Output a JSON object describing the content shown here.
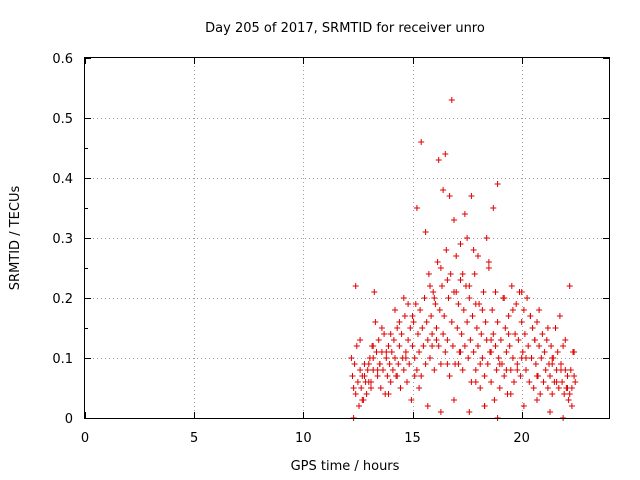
{
  "chart_data": {
    "type": "scatter",
    "title": "Day 205 of 2017, SRMTID for receiver unro",
    "xlabel": "GPS time / hours",
    "ylabel": "SRMTID / TECUs",
    "xlim": [
      0,
      24
    ],
    "ylim": [
      0,
      0.6
    ],
    "xticks": [
      0,
      5,
      10,
      15,
      20
    ],
    "xtick_labels": [
      "0",
      "5",
      "10",
      "15",
      "20"
    ],
    "yticks": [
      0,
      0.1,
      0.2,
      0.3,
      0.4,
      0.5,
      0.6
    ],
    "ytick_labels": [
      "0",
      "0.1",
      "0.2",
      "0.3",
      "0.4",
      "0.5",
      "0.6"
    ],
    "grid": true,
    "marker": "plus",
    "series": [
      {
        "name": "unro",
        "color": "#e00000",
        "x": [
          12.25,
          12.3,
          12.35,
          12.4,
          12.45,
          12.5,
          12.55,
          12.6,
          12.65,
          12.7,
          12.75,
          12.8,
          12.85,
          12.9,
          12.95,
          13.0,
          13.05,
          13.1,
          13.15,
          13.2,
          13.25,
          13.3,
          13.35,
          13.4,
          13.45,
          13.5,
          13.55,
          13.6,
          13.65,
          13.7,
          13.75,
          13.8,
          13.85,
          13.9,
          13.95,
          14.0,
          14.05,
          14.1,
          14.15,
          14.2,
          14.25,
          14.3,
          14.35,
          14.4,
          14.45,
          14.5,
          14.55,
          14.6,
          14.65,
          14.7,
          14.75,
          14.8,
          14.85,
          14.9,
          14.95,
          15.0,
          15.05,
          15.1,
          15.15,
          15.2,
          15.25,
          15.3,
          15.35,
          15.4,
          15.45,
          15.5,
          15.55,
          15.6,
          15.65,
          15.7,
          15.75,
          15.8,
          15.85,
          15.9,
          15.95,
          16.0,
          16.05,
          16.1,
          16.15,
          16.2,
          16.25,
          16.3,
          16.35,
          16.4,
          16.45,
          16.5,
          16.55,
          16.6,
          16.65,
          16.7,
          16.75,
          16.8,
          16.85,
          16.9,
          16.95,
          17.0,
          17.05,
          17.1,
          17.15,
          17.2,
          17.25,
          17.3,
          17.35,
          17.4,
          17.45,
          17.5,
          17.55,
          17.6,
          17.65,
          17.7,
          17.75,
          17.8,
          17.85,
          17.9,
          17.95,
          18.0,
          18.05,
          18.1,
          18.15,
          18.2,
          18.25,
          18.3,
          18.35,
          18.4,
          18.45,
          18.5,
          18.55,
          18.6,
          18.65,
          18.7,
          18.75,
          18.8,
          18.85,
          18.9,
          18.95,
          19.0,
          19.05,
          19.1,
          19.15,
          19.2,
          19.25,
          19.3,
          19.35,
          19.4,
          19.45,
          19.5,
          19.55,
          19.6,
          19.65,
          19.7,
          19.75,
          19.8,
          19.85,
          19.9,
          19.95,
          20.0,
          20.05,
          20.1,
          20.15,
          20.2,
          20.25,
          20.3,
          20.35,
          20.4,
          20.45,
          20.5,
          20.55,
          20.6,
          20.65,
          20.7,
          20.75,
          20.8,
          20.85,
          20.9,
          20.95,
          21.0,
          21.05,
          21.1,
          21.15,
          21.2,
          21.25,
          21.3,
          21.35,
          21.4,
          21.45,
          21.5,
          21.55,
          21.6,
          21.65,
          21.7,
          21.75,
          21.8,
          21.85,
          21.9,
          21.95,
          22.0,
          22.05,
          22.1,
          22.15,
          22.2,
          22.25,
          22.3,
          22.35,
          22.4,
          22.45,
          12.2,
          12.4,
          12.6,
          12.8,
          13.0,
          13.2,
          13.2,
          13.4,
          13.6,
          13.8,
          14.0,
          14.2,
          14.4,
          14.6,
          14.8,
          15.0,
          15.2,
          15.4,
          15.6,
          15.8,
          16.0,
          16.1,
          16.2,
          16.3,
          16.4,
          16.5,
          16.6,
          16.7,
          16.8,
          16.9,
          17.0,
          17.1,
          17.2,
          17.3,
          17.4,
          17.5,
          17.6,
          17.7,
          17.8,
          17.9,
          18.0,
          18.1,
          18.2,
          18.3,
          18.4,
          18.5,
          18.6,
          18.7,
          18.8,
          18.9,
          19.0,
          19.2,
          19.4,
          19.6,
          19.8,
          20.0,
          20.2,
          20.4,
          20.6,
          20.8,
          21.0,
          21.2,
          21.4,
          21.6,
          21.8,
          22.0,
          22.2,
          22.4,
          15.1,
          15.7,
          16.3,
          16.9,
          17.6,
          18.3,
          18.9,
          19.5,
          20.1,
          20.7,
          21.3,
          21.9,
          22.3,
          12.3,
          12.7,
          13.1,
          13.5,
          13.9,
          14.3,
          14.7,
          15.3,
          15.9,
          16.6,
          17.2,
          17.9,
          18.6,
          19.3,
          20.0,
          20.7,
          21.4,
          22.1
        ],
        "y": [
          0.07,
          0.05,
          0.09,
          0.04,
          0.12,
          0.06,
          0.02,
          0.08,
          0.05,
          0.07,
          0.03,
          0.09,
          0.06,
          0.04,
          0.08,
          0.06,
          0.1,
          0.05,
          0.12,
          0.08,
          0.21,
          0.16,
          0.11,
          0.07,
          0.13,
          0.09,
          0.05,
          0.11,
          0.08,
          0.14,
          0.04,
          0.1,
          0.07,
          0.12,
          0.09,
          0.06,
          0.11,
          0.08,
          0.13,
          0.1,
          0.07,
          0.15,
          0.09,
          0.12,
          0.05,
          0.14,
          0.1,
          0.08,
          0.17,
          0.11,
          0.06,
          0.13,
          0.09,
          0.15,
          0.03,
          0.12,
          0.16,
          0.1,
          0.19,
          0.08,
          0.14,
          0.11,
          0.18,
          0.07,
          0.15,
          0.12,
          0.2,
          0.09,
          0.16,
          0.13,
          0.24,
          0.1,
          0.17,
          0.14,
          0.21,
          0.08,
          0.19,
          0.15,
          0.26,
          0.12,
          0.18,
          0.09,
          0.22,
          0.14,
          0.17,
          0.11,
          0.28,
          0.13,
          0.2,
          0.07,
          0.24,
          0.16,
          0.12,
          0.21,
          0.09,
          0.27,
          0.15,
          0.19,
          0.11,
          0.23,
          0.14,
          0.08,
          0.18,
          0.12,
          0.22,
          0.16,
          0.1,
          0.2,
          0.13,
          0.06,
          0.17,
          0.11,
          0.24,
          0.08,
          0.15,
          0.12,
          0.19,
          0.05,
          0.14,
          0.1,
          0.21,
          0.07,
          0.16,
          0.13,
          0.09,
          0.25,
          0.11,
          0.06,
          0.18,
          0.14,
          0.03,
          0.12,
          0.08,
          0.16,
          0.1,
          0.05,
          0.13,
          0.09,
          0.2,
          0.07,
          0.15,
          0.11,
          0.04,
          0.17,
          0.12,
          0.08,
          0.22,
          0.1,
          0.06,
          0.14,
          0.19,
          0.09,
          0.13,
          0.21,
          0.07,
          0.16,
          0.11,
          0.18,
          0.14,
          0.08,
          0.2,
          0.12,
          0.06,
          0.17,
          0.1,
          0.15,
          0.05,
          0.13,
          0.09,
          0.16,
          0.07,
          0.12,
          0.04,
          0.1,
          0.14,
          0.06,
          0.11,
          0.08,
          0.13,
          0.05,
          0.09,
          0.07,
          0.12,
          0.04,
          0.1,
          0.06,
          0.15,
          0.08,
          0.11,
          0.05,
          0.17,
          0.09,
          0.06,
          0.12,
          0.04,
          0.08,
          0.05,
          0.07,
          0.03,
          0.04,
          0.08,
          0.05,
          0.11,
          0.07,
          0.06,
          0.1,
          0.22,
          0.13,
          0.07,
          0.09,
          0.12,
          0.1,
          0.08,
          0.15,
          0.11,
          0.14,
          0.18,
          0.16,
          0.2,
          0.19,
          0.17,
          0.35,
          0.46,
          0.31,
          0.22,
          0.2,
          0.13,
          0.43,
          0.25,
          0.38,
          0.44,
          0.23,
          0.37,
          0.53,
          0.33,
          0.21,
          0.09,
          0.29,
          0.24,
          0.34,
          0.3,
          0.22,
          0.37,
          0.28,
          0.19,
          0.27,
          0.09,
          0.18,
          0.02,
          0.3,
          0.26,
          0.11,
          0.35,
          0.21,
          0.39,
          0.09,
          0.2,
          0.14,
          0.18,
          0.08,
          0.21,
          0.1,
          0.17,
          0.13,
          0.18,
          0.06,
          0.15,
          0.1,
          0.06,
          0.08,
          0.13,
          0.22,
          0.11,
          0.07,
          0.02,
          0.01,
          0.03,
          0.01,
          0.02,
          0.0,
          0.04,
          0.02,
          0.03,
          0.01,
          0.0,
          0.02,
          0.0,
          0.03,
          0.06,
          0.09,
          0.04,
          0.07,
          0.1,
          0.05,
          0.12,
          0.09,
          0.11,
          0.06,
          0.13,
          0.08,
          0.1,
          0.07,
          0.09,
          0.05
        ]
      }
    ]
  }
}
